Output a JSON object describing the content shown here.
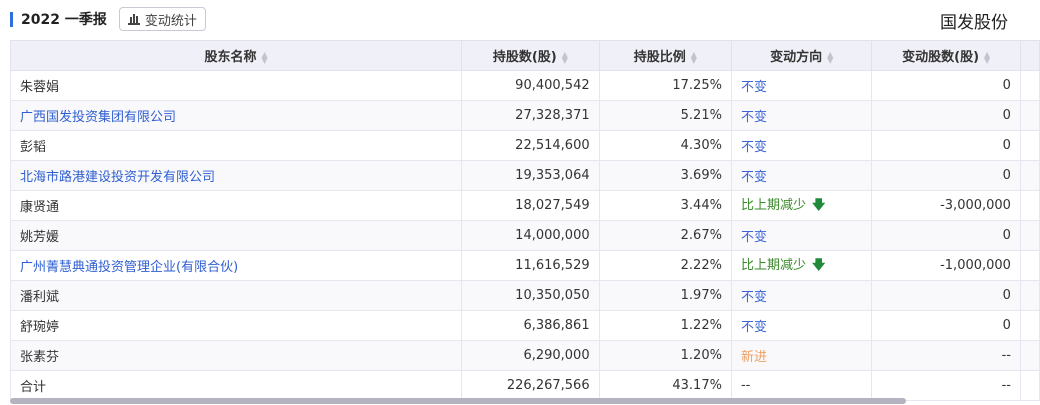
{
  "header": {
    "period": "2022 一季报",
    "stats_button": "变动统计",
    "stock_name": "国发股份"
  },
  "columns": [
    "股东名称",
    "持股数(股)",
    "持股比例",
    "变动方向",
    "变动股数(股)"
  ],
  "rows": [
    {
      "name": "朱蓉娟",
      "link": false,
      "shares": "90,400,542",
      "ratio": "17.25%",
      "dir": "不变",
      "type": "same",
      "change": "0"
    },
    {
      "name": "广西国发投资集团有限公司",
      "link": true,
      "shares": "27,328,371",
      "ratio": "5.21%",
      "dir": "不变",
      "type": "same",
      "change": "0"
    },
    {
      "name": "彭韬",
      "link": false,
      "shares": "22,514,600",
      "ratio": "4.30%",
      "dir": "不变",
      "type": "same",
      "change": "0"
    },
    {
      "name": "北海市路港建设投资开发有限公司",
      "link": true,
      "shares": "19,353,064",
      "ratio": "3.69%",
      "dir": "不变",
      "type": "same",
      "change": "0"
    },
    {
      "name": "康贤通",
      "link": false,
      "shares": "18,027,549",
      "ratio": "3.44%",
      "dir": "比上期减少",
      "type": "down",
      "change": "-3,000,000"
    },
    {
      "name": "姚芳媛",
      "link": false,
      "shares": "14,000,000",
      "ratio": "2.67%",
      "dir": "不变",
      "type": "same",
      "change": "0"
    },
    {
      "name": "广州菁慧典通投资管理企业(有限合伙)",
      "link": true,
      "shares": "11,616,529",
      "ratio": "2.22%",
      "dir": "比上期减少",
      "type": "down",
      "change": "-1,000,000"
    },
    {
      "name": "潘利斌",
      "link": false,
      "shares": "10,350,050",
      "ratio": "1.97%",
      "dir": "不变",
      "type": "same",
      "change": "0"
    },
    {
      "name": "舒琬婷",
      "link": false,
      "shares": "6,386,861",
      "ratio": "1.22%",
      "dir": "不变",
      "type": "same",
      "change": "0"
    },
    {
      "name": "张素芬",
      "link": false,
      "shares": "6,290,000",
      "ratio": "1.20%",
      "dir": "新进",
      "type": "new",
      "change": "--"
    },
    {
      "name": "合计",
      "link": false,
      "shares": "226,267,566",
      "ratio": "43.17%",
      "dir": "--",
      "type": "none",
      "change": "--"
    }
  ],
  "colors": {
    "link": "#2f5fd0",
    "same": "#3a64d8",
    "down": "#3a8a2a",
    "new": "#f0a060",
    "accent": "#2f6fe0"
  }
}
